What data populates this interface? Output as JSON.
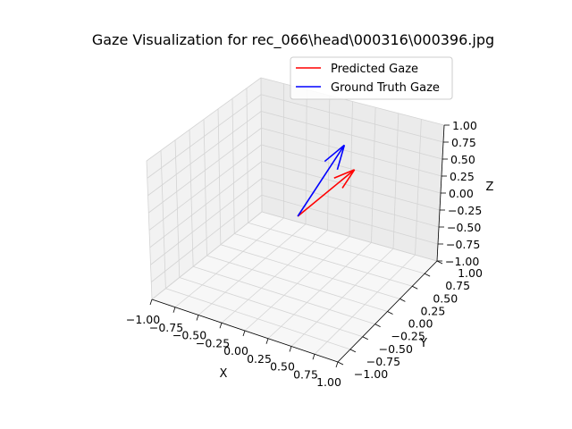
{
  "chart_data": {
    "type": "line",
    "projection": "3d",
    "title": "Gaze Visualization for rec_066\\head\\000316\\000396.jpg",
    "xlabel": "X",
    "ylabel": "Y",
    "zlabel": "Z",
    "xlim": [
      -1,
      1
    ],
    "ylim": [
      -1,
      1
    ],
    "zlim": [
      -1,
      1
    ],
    "ticks": [
      -1.0,
      -0.75,
      -0.5,
      -0.25,
      0.0,
      0.25,
      0.5,
      0.75,
      1.0
    ],
    "tick_labels": [
      "−1.00",
      "−0.75",
      "−0.50",
      "−0.25",
      "0.00",
      "0.25",
      "0.50",
      "0.75",
      "1.00"
    ],
    "grid": true,
    "legend_position": "top-right",
    "series": [
      {
        "name": "Predicted Gaze",
        "color": "#ff0000",
        "origin": [
          0,
          0,
          0
        ],
        "vector": [
          0.05,
          0.98,
          0.02
        ]
      },
      {
        "name": "Ground Truth Gaze",
        "color": "#0000ff",
        "origin": [
          0,
          0,
          0
        ],
        "vector": [
          -0.05,
          0.95,
          0.37
        ]
      }
    ]
  }
}
